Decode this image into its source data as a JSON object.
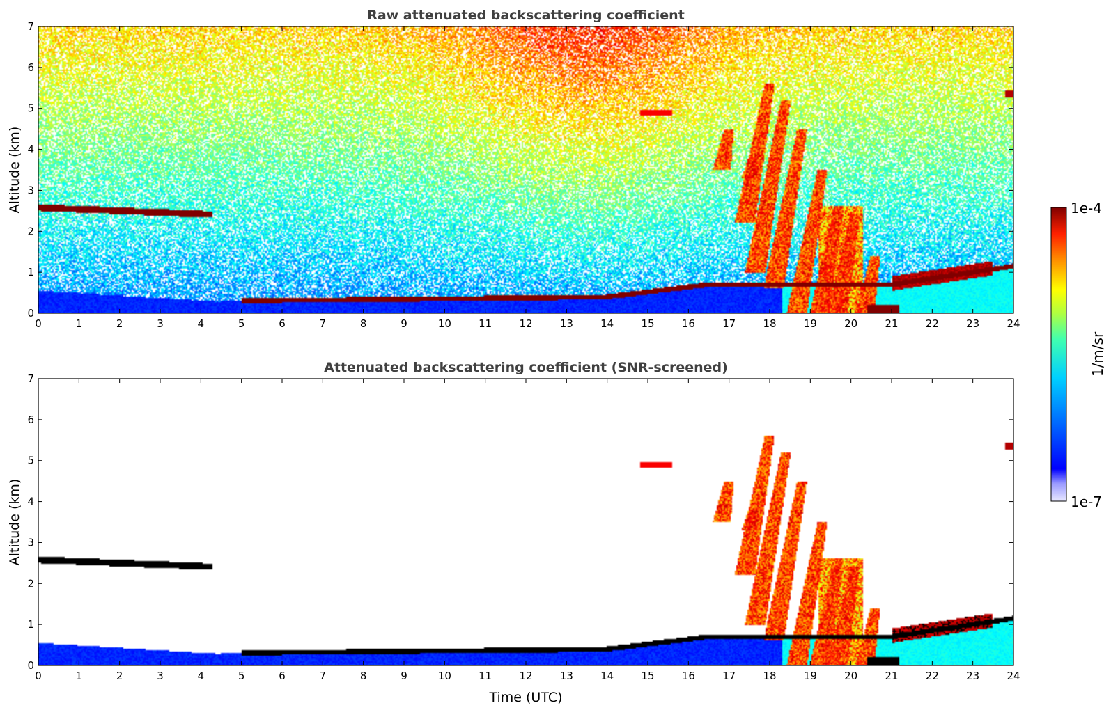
{
  "chart_data": [
    {
      "type": "heatmap",
      "title": "Raw attenuated backscattering coefficient",
      "xlabel": "",
      "ylabel": "Altitude (km)",
      "xlim": [
        0,
        24
      ],
      "ylim": [
        0,
        7
      ],
      "x_ticks": [
        "0",
        "1",
        "2",
        "3",
        "4",
        "5",
        "6",
        "7",
        "8",
        "9",
        "10",
        "11",
        "12",
        "13",
        "14",
        "15",
        "16",
        "17",
        "18",
        "19",
        "20",
        "21",
        "22",
        "23",
        "24"
      ],
      "y_ticks": [
        "0",
        "1",
        "2",
        "3",
        "4",
        "5",
        "6",
        "7"
      ],
      "screened": false,
      "features": [
        {
          "name": "elevated aerosol layer",
          "t_start": 0,
          "t_end": 4.3,
          "altitude_km": 2.5
        },
        {
          "name": "boundary layer top",
          "t_start": 5,
          "t_end": 24,
          "altitude_km_start": 0.3,
          "altitude_km_end": 1.1
        },
        {
          "name": "mid-level clouds and precipitation",
          "t_start": 16.5,
          "t_end": 21.5,
          "altitude_km_top": 5.5
        }
      ]
    },
    {
      "type": "heatmap",
      "title": "Attenuated backscattering coefficient (SNR-screened)",
      "xlabel": "Time (UTC)",
      "ylabel": "Altitude (km)",
      "xlim": [
        0,
        24
      ],
      "ylim": [
        0,
        7
      ],
      "x_ticks": [
        "0",
        "1",
        "2",
        "3",
        "4",
        "5",
        "6",
        "7",
        "8",
        "9",
        "10",
        "11",
        "12",
        "13",
        "14",
        "15",
        "16",
        "17",
        "18",
        "19",
        "20",
        "21",
        "22",
        "23",
        "24"
      ],
      "y_ticks": [
        "0",
        "1",
        "2",
        "3",
        "4",
        "5",
        "6",
        "7"
      ],
      "screened": true
    }
  ],
  "colorbar": {
    "label": "1/m/sr",
    "max_label": "1e-4",
    "min_label": "1e-7",
    "scale": "log",
    "colormap": "jet"
  }
}
